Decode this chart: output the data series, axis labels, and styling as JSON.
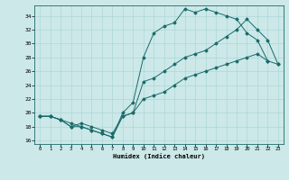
{
  "xlabel": "Humidex (Indice chaleur)",
  "ylabel": "",
  "bg_color": "#cce8e8",
  "line_color": "#1a6b6b",
  "xlim": [
    -0.5,
    23.5
  ],
  "ylim": [
    15.5,
    35.5
  ],
  "xticks": [
    0,
    1,
    2,
    3,
    4,
    5,
    6,
    7,
    8,
    9,
    10,
    11,
    12,
    13,
    14,
    15,
    16,
    17,
    18,
    19,
    20,
    21,
    22,
    23
  ],
  "yticks": [
    16,
    18,
    20,
    22,
    24,
    26,
    28,
    30,
    32,
    34
  ],
  "line1_y": [
    19.5,
    19.5,
    19.0,
    18.0,
    18.0,
    17.5,
    17.0,
    16.5,
    20.0,
    21.5,
    28.0,
    31.5,
    32.5,
    33.0,
    35.0,
    34.5,
    35.0,
    34.5,
    34.0,
    33.5,
    31.5,
    30.5,
    27.5,
    null
  ],
  "line2_y": [
    19.5,
    19.5,
    19.0,
    18.5,
    18.0,
    17.5,
    17.0,
    16.5,
    19.5,
    20.0,
    24.5,
    25.0,
    26.0,
    27.0,
    28.0,
    28.5,
    29.0,
    30.0,
    31.0,
    32.0,
    33.5,
    32.0,
    30.5,
    27.0
  ],
  "line3_y": [
    19.5,
    19.5,
    19.0,
    18.0,
    18.5,
    18.0,
    17.5,
    17.0,
    19.5,
    20.0,
    22.0,
    22.5,
    23.0,
    24.0,
    25.0,
    25.5,
    26.0,
    26.5,
    27.0,
    27.5,
    28.0,
    28.5,
    27.5,
    27.0
  ]
}
